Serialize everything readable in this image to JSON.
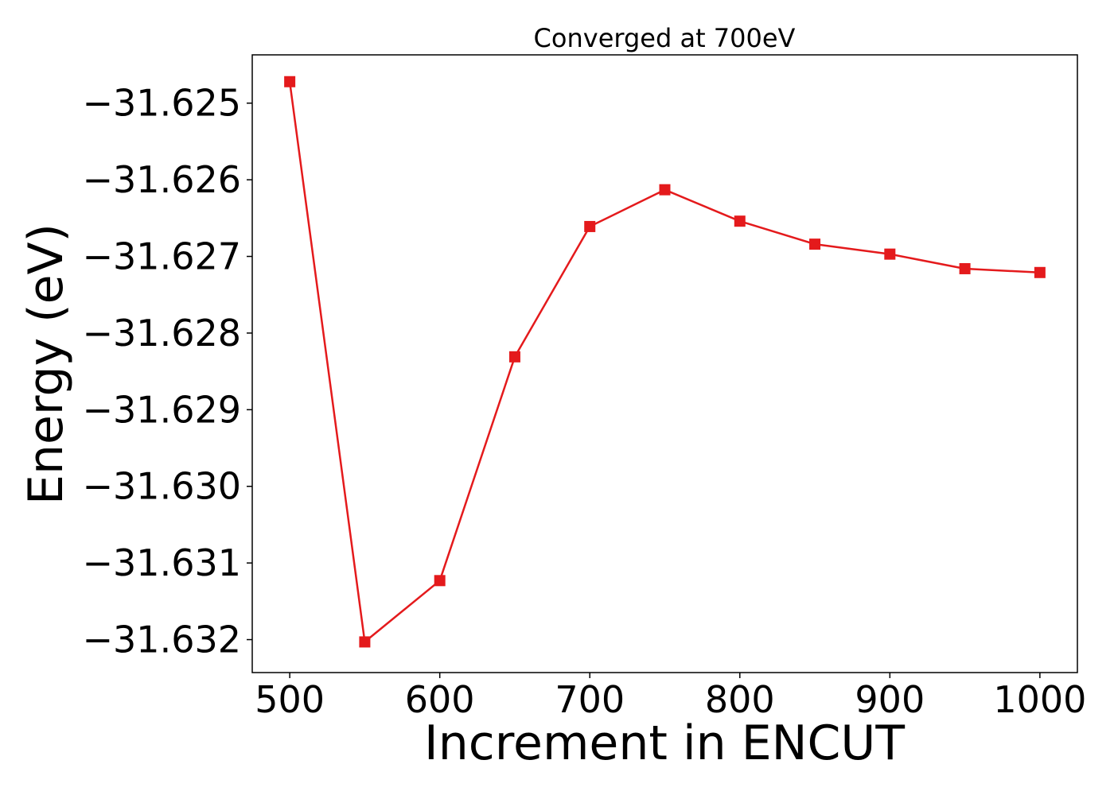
{
  "chart_data": {
    "type": "line",
    "title": "Converged at 700eV",
    "xlabel": "Increment in ENCUT",
    "ylabel": "Energy (eV)",
    "xlim": [
      475,
      1025
    ],
    "ylim": [
      -31.63243,
      -31.62437
    ],
    "x_ticks": [
      500,
      600,
      700,
      800,
      900,
      1000
    ],
    "x_tick_labels": [
      "500",
      "600",
      "700",
      "800",
      "900",
      "1000"
    ],
    "y_ticks": [
      -31.625,
      -31.626,
      -31.627,
      -31.628,
      -31.629,
      -31.63,
      -31.631,
      -31.632
    ],
    "y_tick_labels": [
      "−31.625",
      "−31.626",
      "−31.627",
      "−31.628",
      "−31.629",
      "−31.630",
      "−31.631",
      "−31.632"
    ],
    "grid": false,
    "series": [
      {
        "color": "#e41a1c",
        "marker": "square",
        "x": [
          500,
          550,
          600,
          650,
          700,
          750,
          800,
          850,
          900,
          950,
          1000
        ],
        "y": [
          -31.62472,
          -31.63203,
          -31.63123,
          -31.62831,
          -31.62661,
          -31.62613,
          -31.62654,
          -31.62684,
          -31.62697,
          -31.62716,
          -31.62721
        ]
      }
    ]
  }
}
